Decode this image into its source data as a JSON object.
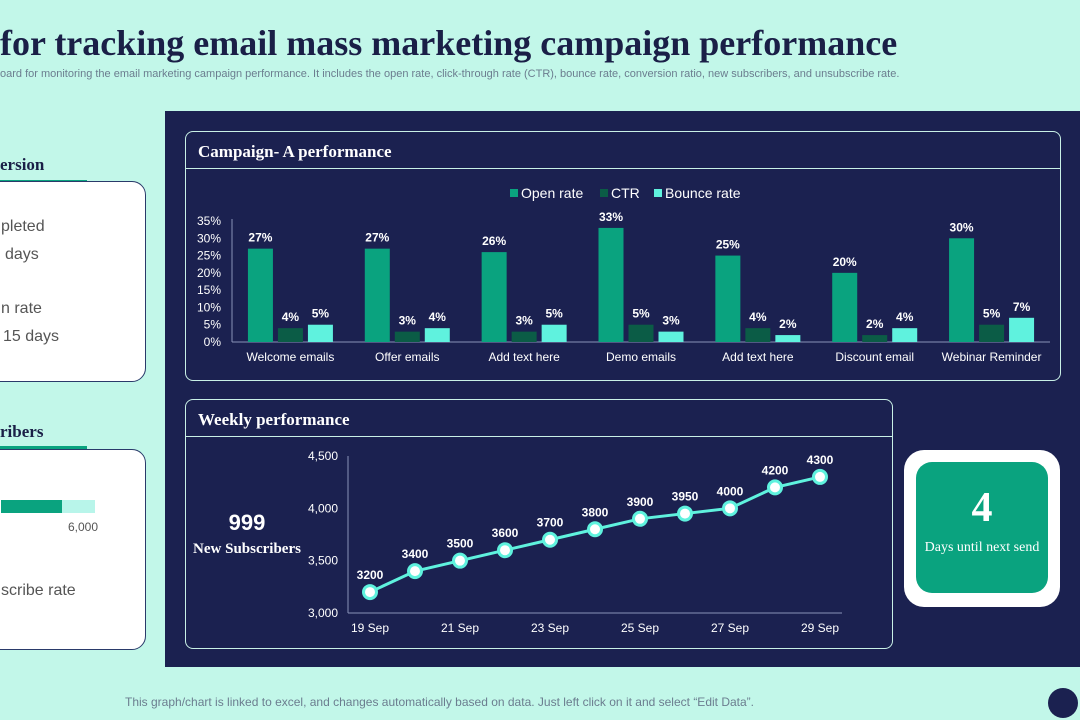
{
  "header": {
    "title": "for tracking email mass marketing campaign performance",
    "subtitle": "oard for monitoring the email marketing campaign performance. It includes the open rate, click-through rate (CTR), bounce rate, conversion ratio, new subscribers, and unsubscribe rate."
  },
  "left_top": {
    "heading": "ersion",
    "line1": "pleted",
    "line2": "days",
    "line3": "n rate",
    "line4": "15 days"
  },
  "left_bottom": {
    "heading": "ribers",
    "axis_value": "6,000",
    "line1": "scribe rate",
    "progress_fraction": 0.65
  },
  "colors": {
    "open_rate": "#0aa37f",
    "ctr": "#0b5c46",
    "bounce_rate": "#5ff2de",
    "line": "#5ff2de",
    "panel": "#1b2150"
  },
  "weekly_panel": {
    "title": "Weekly performance",
    "subscribers_value": "999",
    "subscribers_label": "New Subscribers"
  },
  "days_box": {
    "value": "4",
    "label": "Days until next send"
  },
  "footer": {
    "note": "This graph/chart is linked to excel,  and changes automatically based on data. Just left click on it and select “Edit Data”."
  },
  "chart_data": [
    {
      "type": "bar",
      "title": "Campaign- A performance",
      "categories": [
        "Welcome emails",
        "Offer emails",
        "Add text here",
        "Demo emails",
        "Add text here",
        "Discount email",
        "Webinar Reminder"
      ],
      "series": [
        {
          "name": "Open rate",
          "values": [
            27,
            27,
            26,
            33,
            25,
            20,
            30
          ]
        },
        {
          "name": "CTR",
          "values": [
            4,
            3,
            3,
            5,
            4,
            2,
            5
          ]
        },
        {
          "name": "Bounce rate",
          "values": [
            5,
            4,
            5,
            3,
            2,
            4,
            7
          ]
        }
      ],
      "ylim": [
        0,
        35
      ],
      "yticks": [
        "0%",
        "5%",
        "10%",
        "15%",
        "20%",
        "25%",
        "30%",
        "35%"
      ],
      "value_suffix": "%",
      "legend": "top-center",
      "grid": false
    },
    {
      "type": "line",
      "x_count": 11,
      "xticks": [
        {
          "index": 0,
          "label": "19 Sep"
        },
        {
          "index": 2,
          "label": "21 Sep"
        },
        {
          "index": 4,
          "label": "23 Sep"
        },
        {
          "index": 6,
          "label": "25 Sep"
        },
        {
          "index": 8,
          "label": "27 Sep"
        },
        {
          "index": 10,
          "label": "29 Sep"
        }
      ],
      "values": [
        3200,
        3400,
        3500,
        3600,
        3700,
        3800,
        3900,
        3950,
        4000,
        4200,
        4300
      ],
      "ylim": [
        3000,
        4500
      ],
      "yticks": [
        "3,000",
        "3,500",
        "4,000",
        "4,500"
      ],
      "grid": false
    }
  ]
}
